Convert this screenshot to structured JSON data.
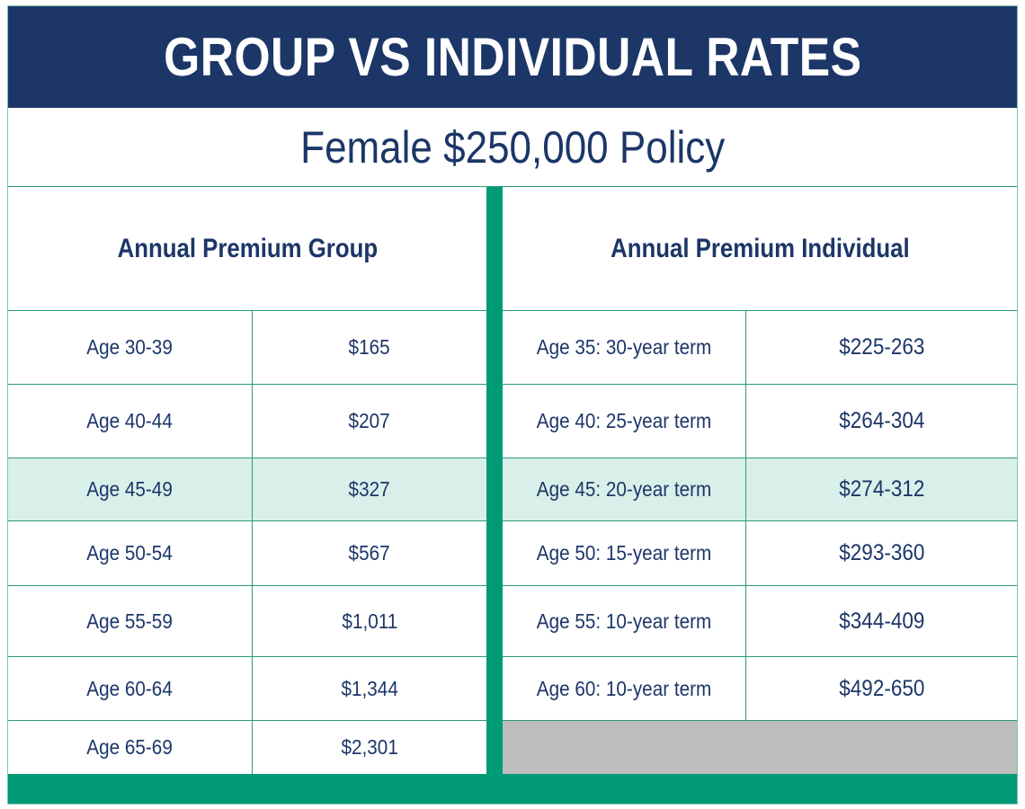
{
  "title": "GROUP VS INDIVIDUAL RATES",
  "subtitle": "Female $250,000 Policy",
  "group": {
    "header": "Annual Premium Group",
    "rows": [
      {
        "age": "Age 30-39",
        "premium": "$165"
      },
      {
        "age": "Age 40-44",
        "premium": "$207"
      },
      {
        "age": "Age 45-49",
        "premium": "$327"
      },
      {
        "age": "Age 50-54",
        "premium": "$567"
      },
      {
        "age": "Age 55-59",
        "premium": "$1,011"
      },
      {
        "age": "Age 60-64",
        "premium": "$1,344"
      },
      {
        "age": "Age 65-69",
        "premium": "$2,301"
      }
    ]
  },
  "individual": {
    "header": "Annual Premium Individual",
    "rows": [
      {
        "term": "Age 35: 30-year term",
        "premium": "$225-263"
      },
      {
        "term": "Age 40: 25-year term",
        "premium": "$264-304"
      },
      {
        "term": "Age 45: 20-year term",
        "premium": "$274-312"
      },
      {
        "term": "Age 50: 15-year term",
        "premium": "$293-360"
      },
      {
        "term": "Age 55: 10-year term",
        "premium": "$344-409"
      },
      {
        "term": "Age 60: 10-year term",
        "premium": "$492-650"
      }
    ]
  },
  "highlighted_row": "Age 45",
  "colors": {
    "navy": "#1c3668",
    "green": "#009a77",
    "highlight": "#d9f0ea",
    "empty": "#bdbdbd"
  }
}
